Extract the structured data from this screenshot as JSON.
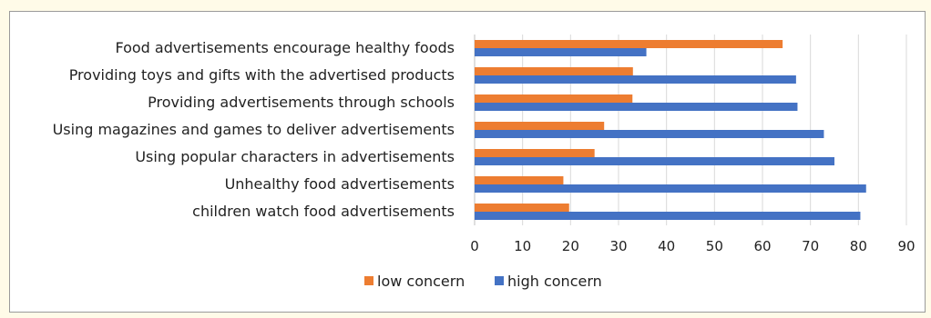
{
  "chart_data": {
    "type": "bar",
    "orientation": "horizontal",
    "title": "",
    "xlabel": "",
    "ylabel": "",
    "categories": [
      "Food advertisements encourage healthy foods",
      "Providing toys and gifts with the advertised products",
      "Providing advertisements through schools",
      "Using magazines and games to deliver advertisements",
      "Using popular characters in advertisements",
      "Unhealthy food advertisements",
      "children watch food advertisements"
    ],
    "series": [
      {
        "name": "low concern",
        "color": "#ed7d31",
        "values": [
          64.2,
          33.0,
          32.9,
          27.0,
          25.0,
          18.5,
          19.7
        ]
      },
      {
        "name": "high concern",
        "color": "#4472c4",
        "values": [
          35.8,
          67.0,
          67.3,
          72.8,
          75.0,
          81.6,
          80.4
        ]
      }
    ],
    "xlim": [
      0,
      90
    ],
    "xticks": [
      0,
      10,
      20,
      30,
      40,
      50,
      60,
      70,
      80,
      90
    ],
    "grid": "vertical",
    "legend": "bottom-center"
  }
}
